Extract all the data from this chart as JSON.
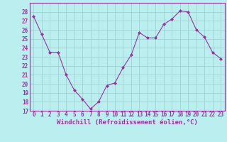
{
  "x": [
    0,
    1,
    2,
    3,
    4,
    5,
    6,
    7,
    8,
    9,
    10,
    11,
    12,
    13,
    14,
    15,
    16,
    17,
    18,
    19,
    20,
    21,
    22,
    23
  ],
  "y": [
    27.5,
    25.5,
    23.5,
    23.5,
    21.0,
    19.3,
    18.3,
    17.2,
    18.0,
    19.8,
    20.1,
    21.8,
    23.2,
    25.7,
    25.1,
    25.1,
    26.6,
    27.2,
    28.1,
    28.0,
    26.0,
    25.2,
    23.5,
    22.8
  ],
  "line_color": "#993399",
  "marker_color": "#993399",
  "bg_color": "#bbeeee",
  "grid_color": "#99cccc",
  "axis_color": "#993399",
  "xlabel": "Windchill (Refroidissement éolien,°C)",
  "ylim": [
    17,
    29
  ],
  "xlim_min": -0.5,
  "xlim_max": 23.5,
  "yticks": [
    17,
    18,
    19,
    20,
    21,
    22,
    23,
    24,
    25,
    26,
    27,
    28
  ],
  "xticks": [
    0,
    1,
    2,
    3,
    4,
    5,
    6,
    7,
    8,
    9,
    10,
    11,
    12,
    13,
    14,
    15,
    16,
    17,
    18,
    19,
    20,
    21,
    22,
    23
  ],
  "tick_fontsize": 5.5,
  "xlabel_fontsize": 6.5
}
